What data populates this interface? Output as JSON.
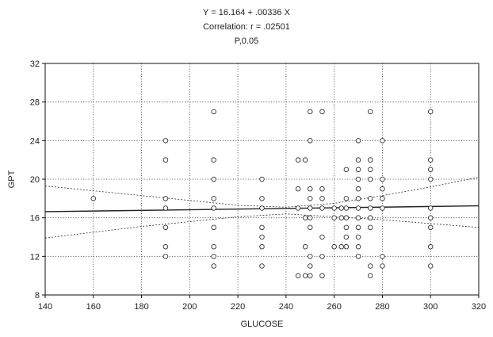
{
  "chart_data": {
    "type": "scatter",
    "title_lines": [
      "Y = 16.164 + .00336 X",
      "Correlation: r = .02501",
      "P,0.05"
    ],
    "xlabel": "GLUCOSE",
    "ylabel": "GPT",
    "xlim": [
      140,
      320
    ],
    "ylim": [
      8,
      32
    ],
    "xticks": [
      140,
      160,
      180,
      200,
      220,
      240,
      260,
      280,
      300,
      320
    ],
    "yticks": [
      8,
      12,
      16,
      20,
      24,
      28,
      32
    ],
    "grid": true,
    "regression": {
      "intercept": 16.164,
      "slope": 0.00336
    },
    "confidence_band": {
      "x": [
        140,
        160,
        180,
        200,
        220,
        240,
        260,
        280,
        300,
        320
      ],
      "upper": [
        19.3,
        18.8,
        18.3,
        17.8,
        17.3,
        17.1,
        17.5,
        18.3,
        19.2,
        20.2
      ],
      "lower": [
        13.9,
        14.5,
        15.1,
        15.6,
        16.1,
        16.4,
        16.1,
        15.8,
        15.4,
        15.0
      ]
    },
    "points": [
      [
        160,
        18
      ],
      [
        190,
        24
      ],
      [
        190,
        22
      ],
      [
        190,
        18
      ],
      [
        190,
        17
      ],
      [
        190,
        15
      ],
      [
        190,
        13
      ],
      [
        190,
        12
      ],
      [
        210,
        27
      ],
      [
        210,
        22
      ],
      [
        210,
        20
      ],
      [
        210,
        18
      ],
      [
        210,
        17
      ],
      [
        210,
        15
      ],
      [
        210,
        13
      ],
      [
        210,
        12
      ],
      [
        210,
        11
      ],
      [
        230,
        20
      ],
      [
        230,
        18
      ],
      [
        230,
        17
      ],
      [
        230,
        15
      ],
      [
        230,
        14
      ],
      [
        230,
        13
      ],
      [
        230,
        11
      ],
      [
        245,
        22
      ],
      [
        245,
        19
      ],
      [
        245,
        17
      ],
      [
        245,
        10
      ],
      [
        248,
        22
      ],
      [
        248,
        16
      ],
      [
        248,
        13
      ],
      [
        248,
        10
      ],
      [
        250,
        27
      ],
      [
        250,
        24
      ],
      [
        250,
        19
      ],
      [
        250,
        18
      ],
      [
        250,
        17
      ],
      [
        250,
        16
      ],
      [
        250,
        15
      ],
      [
        250,
        12
      ],
      [
        250,
        11
      ],
      [
        250,
        10
      ],
      [
        255,
        27
      ],
      [
        255,
        19
      ],
      [
        255,
        18
      ],
      [
        255,
        17
      ],
      [
        255,
        14
      ],
      [
        255,
        12
      ],
      [
        255,
        10
      ],
      [
        260,
        17
      ],
      [
        260,
        16
      ],
      [
        260,
        13
      ],
      [
        263,
        17
      ],
      [
        263,
        16
      ],
      [
        263,
        13
      ],
      [
        265,
        21
      ],
      [
        265,
        18
      ],
      [
        265,
        17
      ],
      [
        265,
        16
      ],
      [
        265,
        15
      ],
      [
        265,
        14
      ],
      [
        265,
        13
      ],
      [
        270,
        24
      ],
      [
        270,
        22
      ],
      [
        270,
        21
      ],
      [
        270,
        20
      ],
      [
        270,
        19
      ],
      [
        270,
        18
      ],
      [
        270,
        17
      ],
      [
        270,
        16
      ],
      [
        270,
        15
      ],
      [
        270,
        14
      ],
      [
        270,
        13
      ],
      [
        270,
        12
      ],
      [
        275,
        27
      ],
      [
        275,
        22
      ],
      [
        275,
        21
      ],
      [
        275,
        20
      ],
      [
        275,
        18
      ],
      [
        275,
        17
      ],
      [
        275,
        16
      ],
      [
        275,
        15
      ],
      [
        275,
        11
      ],
      [
        275,
        10
      ],
      [
        280,
        24
      ],
      [
        280,
        20
      ],
      [
        280,
        19
      ],
      [
        280,
        18
      ],
      [
        280,
        17
      ],
      [
        280,
        12
      ],
      [
        280,
        11
      ],
      [
        300,
        27
      ],
      [
        300,
        22
      ],
      [
        300,
        21
      ],
      [
        300,
        20
      ],
      [
        300,
        17
      ],
      [
        300,
        16
      ],
      [
        300,
        15
      ],
      [
        300,
        13
      ],
      [
        300,
        11
      ]
    ]
  }
}
